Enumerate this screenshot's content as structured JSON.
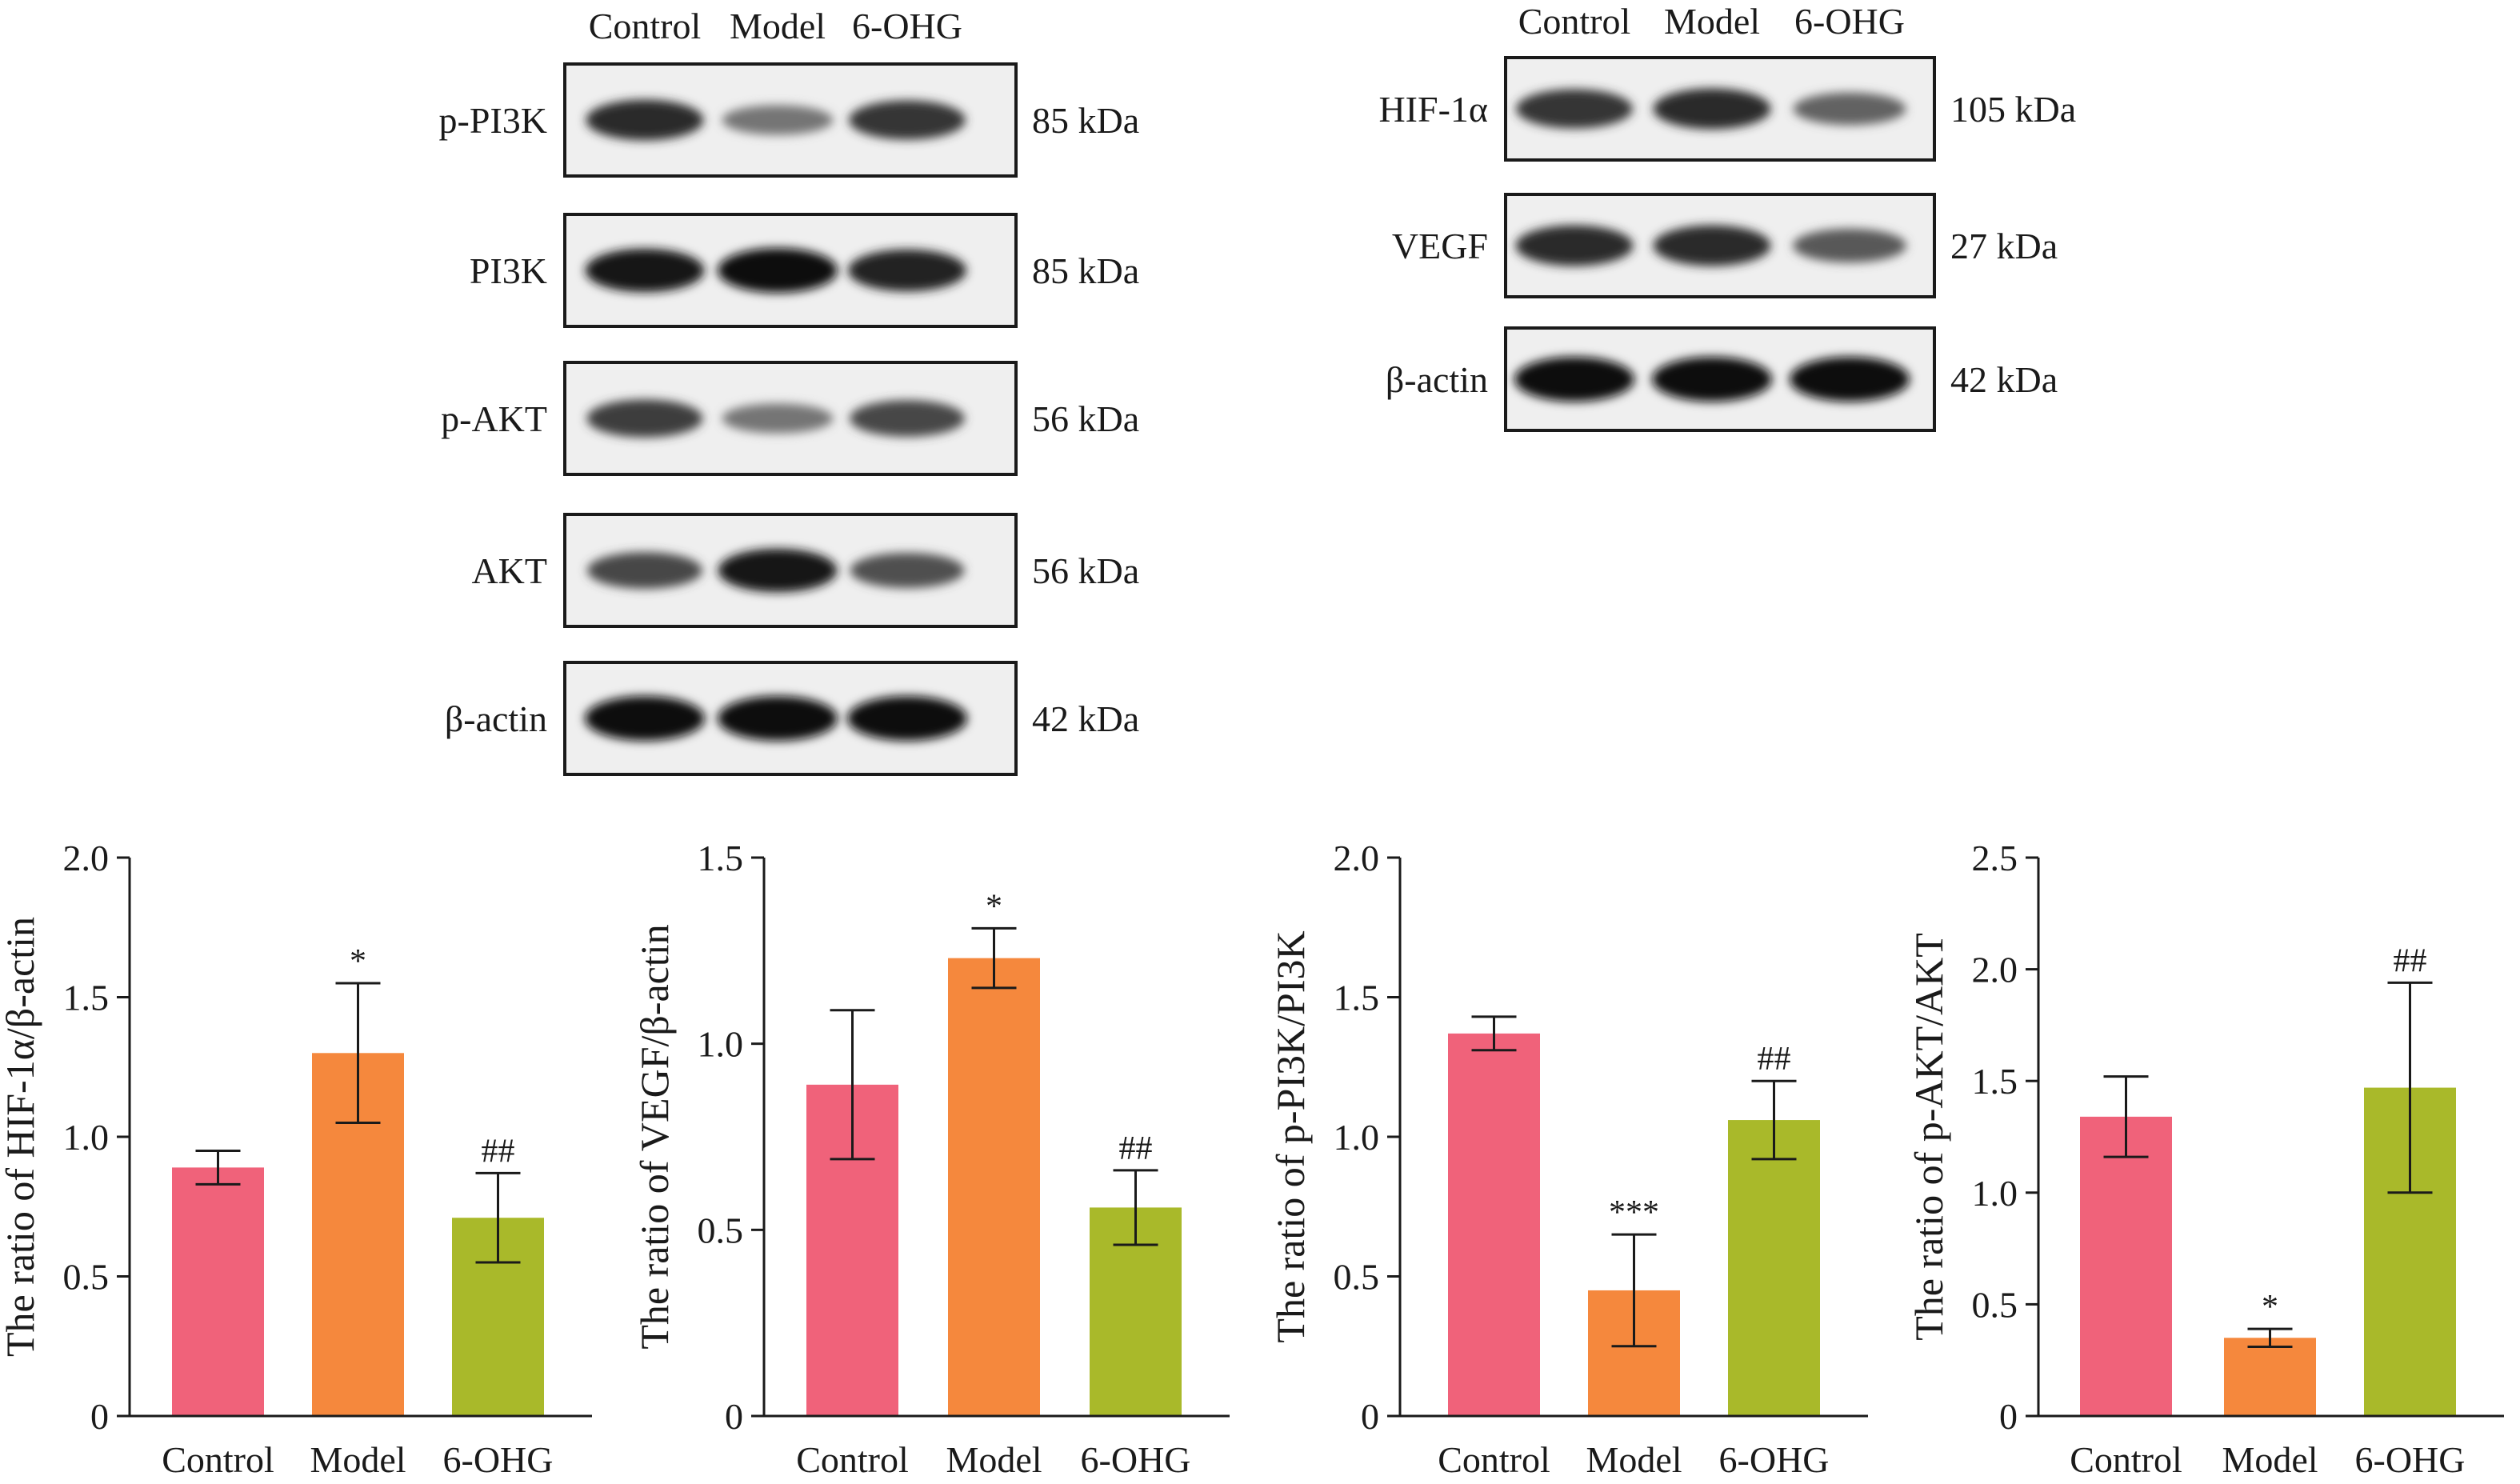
{
  "colors": {
    "control": "#f0627a",
    "model": "#f5883d",
    "ohg": "#a9b92a",
    "ink": "#1a1a1a",
    "blot_bg": "#efefef",
    "band": "#141414"
  },
  "blots": [
    {
      "lanes": [
        "Control",
        "Model",
        "6-OHG"
      ],
      "rows": [
        {
          "protein": "p-PI3K",
          "size": "85 kDa",
          "intensity": [
            0.85,
            0.45,
            0.8
          ]
        },
        {
          "protein": "PI3K",
          "size": "85 kDa",
          "intensity": [
            0.95,
            1.0,
            0.9
          ]
        },
        {
          "protein": "p-AKT",
          "size": "56 kDa",
          "intensity": [
            0.75,
            0.45,
            0.7
          ]
        },
        {
          "protein": "AKT",
          "size": "56 kDa",
          "intensity": [
            0.7,
            0.95,
            0.65
          ]
        },
        {
          "protein": "β-actin",
          "size": "42 kDa",
          "intensity": [
            1.0,
            1.0,
            1.0
          ]
        }
      ]
    },
    {
      "lanes": [
        "Control",
        "Model",
        "6-OHG"
      ],
      "rows": [
        {
          "protein": "HIF-1α",
          "size": "105 kDa",
          "intensity": [
            0.8,
            0.85,
            0.55
          ]
        },
        {
          "protein": "VEGF",
          "size": "27 kDa",
          "intensity": [
            0.85,
            0.85,
            0.6
          ]
        },
        {
          "protein": "β-actin",
          "size": "42 kDa",
          "intensity": [
            1.0,
            1.0,
            1.0
          ]
        }
      ]
    }
  ],
  "chart_data": [
    {
      "type": "bar",
      "categories": [
        "Control",
        "Model",
        "6-OHG"
      ],
      "values": [
        0.89,
        1.3,
        0.71
      ],
      "errors": [
        0.06,
        0.25,
        0.16
      ],
      "annotations": [
        "",
        "*",
        "##"
      ],
      "ylabel": "The ratio of HIF-1α/β-actin",
      "ylim": [
        0,
        2.0
      ],
      "yticks": [
        "0",
        "0.5",
        "1.0",
        "1.5",
        "2.0"
      ],
      "ytick_values": [
        0,
        0.5,
        1.0,
        1.5,
        2.0
      ]
    },
    {
      "type": "bar",
      "categories": [
        "Control",
        "Model",
        "6-OHG"
      ],
      "values": [
        0.89,
        1.23,
        0.56
      ],
      "errors": [
        0.2,
        0.08,
        0.1
      ],
      "annotations": [
        "",
        "*",
        "##"
      ],
      "ylabel": "The ratio of VEGF/β-actin",
      "ylim": [
        0,
        1.5
      ],
      "yticks": [
        "0",
        "0.5",
        "1.0",
        "1.5"
      ],
      "ytick_values": [
        0,
        0.5,
        1.0,
        1.5
      ]
    },
    {
      "type": "bar",
      "categories": [
        "Control",
        "Model",
        "6-OHG"
      ],
      "values": [
        1.37,
        0.45,
        1.06
      ],
      "errors": [
        0.06,
        0.2,
        0.14
      ],
      "annotations": [
        "",
        "***",
        "##"
      ],
      "ylabel": "The ratio of p-PI3K/PI3K",
      "ylim": [
        0,
        2.0
      ],
      "yticks": [
        "0",
        "0.5",
        "1.0",
        "1.5",
        "2.0"
      ],
      "ytick_values": [
        0,
        0.5,
        1.0,
        1.5,
        2.0
      ]
    },
    {
      "type": "bar",
      "categories": [
        "Control",
        "Model",
        "6-OHG"
      ],
      "values": [
        1.34,
        0.35,
        1.47
      ],
      "errors": [
        0.18,
        0.04,
        0.47
      ],
      "annotations": [
        "",
        "*",
        "##"
      ],
      "ylabel": "The ratio of p-AKT/AKT",
      "ylim": [
        0,
        2.5
      ],
      "yticks": [
        "0",
        "0.5",
        "1.0",
        "1.5",
        "2.0",
        "2.5"
      ],
      "ytick_values": [
        0,
        0.5,
        1.0,
        1.5,
        2.0,
        2.5
      ]
    }
  ]
}
